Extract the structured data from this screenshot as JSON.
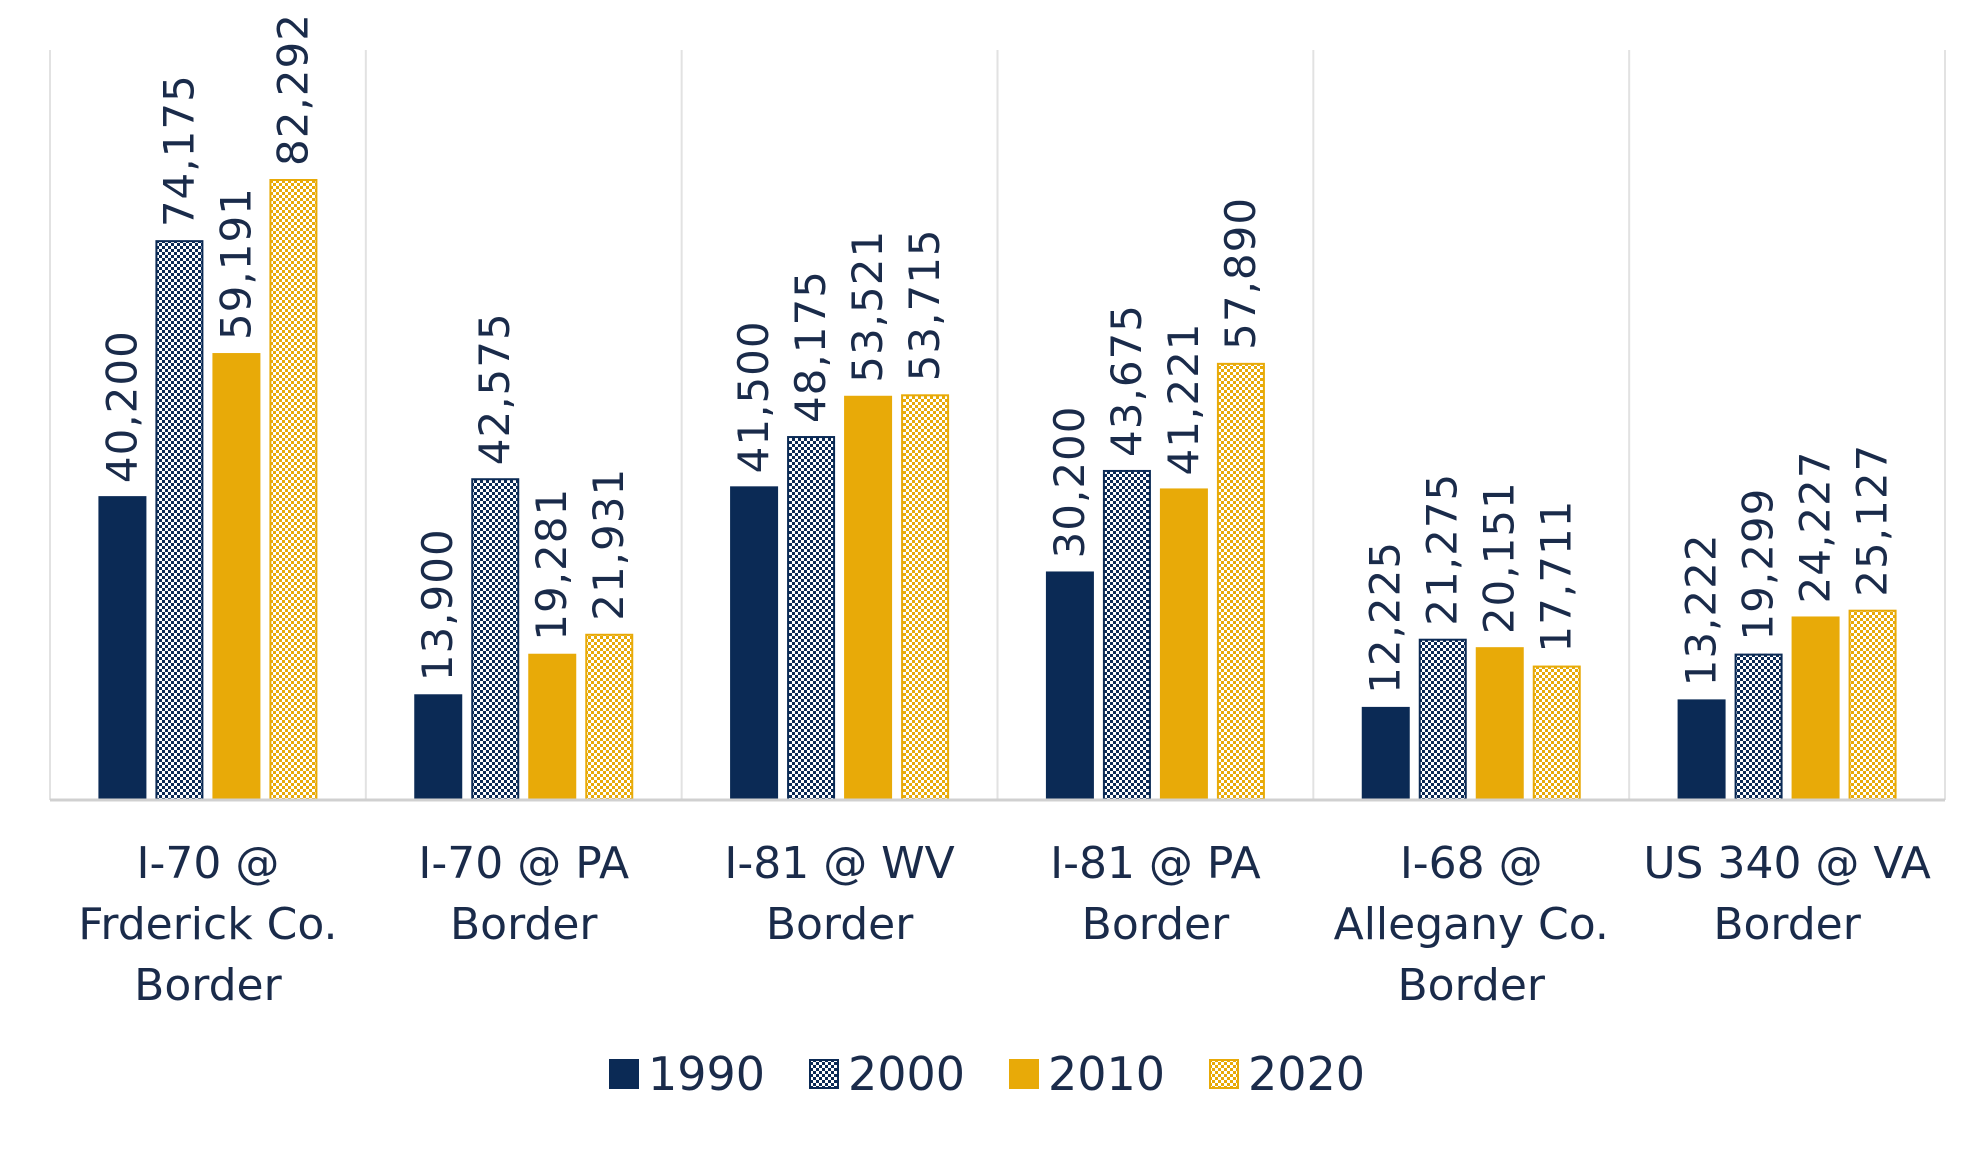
{
  "chart_data": {
    "type": "bar",
    "title": "",
    "xlabel": "",
    "ylabel": "",
    "ylim": [
      0,
      85000
    ],
    "grid": false,
    "legend_position": "bottom",
    "categories": [
      [
        "I-70 @",
        "Frderick Co.",
        "Border"
      ],
      [
        "I-70 @ PA",
        "Border"
      ],
      [
        "I-81 @ WV",
        "Border"
      ],
      [
        "I-81 @ PA",
        "Border"
      ],
      [
        "I-68 @",
        "Allegany Co.",
        "Border"
      ],
      [
        "US 340 @ VA",
        "Border"
      ]
    ],
    "series": [
      {
        "name": "1990",
        "fill": "solid",
        "color": "#0b2a55",
        "values": [
          40200,
          13900,
          41500,
          30200,
          12225,
          13222
        ],
        "labels": [
          "40,200",
          "13,900",
          "41,500",
          "30,200",
          "12,225",
          "13,222"
        ]
      },
      {
        "name": "2000",
        "fill": "checker",
        "color": "#0b2a55",
        "values": [
          74175,
          42575,
          48175,
          43675,
          21275,
          19299
        ],
        "labels": [
          "74,175",
          "42,575",
          "48,175",
          "43,675",
          "21,275",
          "19,299"
        ]
      },
      {
        "name": "2010",
        "fill": "solid",
        "color": "#e8aa08",
        "values": [
          59191,
          19281,
          53521,
          41221,
          20151,
          24227
        ],
        "labels": [
          "59,191",
          "19,281",
          "53,521",
          "41,221",
          "20,151",
          "24,227"
        ]
      },
      {
        "name": "2020",
        "fill": "checker",
        "color": "#e8aa08",
        "values": [
          82292,
          21931,
          53715,
          57890,
          17711,
          25127
        ],
        "labels": [
          "82,292",
          "21,931",
          "53,715",
          "57,890",
          "17,711",
          "25,127"
        ]
      }
    ],
    "colors": {
      "label_text": "#1a2b4a",
      "axis_line": "#d0d0d0",
      "separator": "#e2e2e2"
    }
  }
}
